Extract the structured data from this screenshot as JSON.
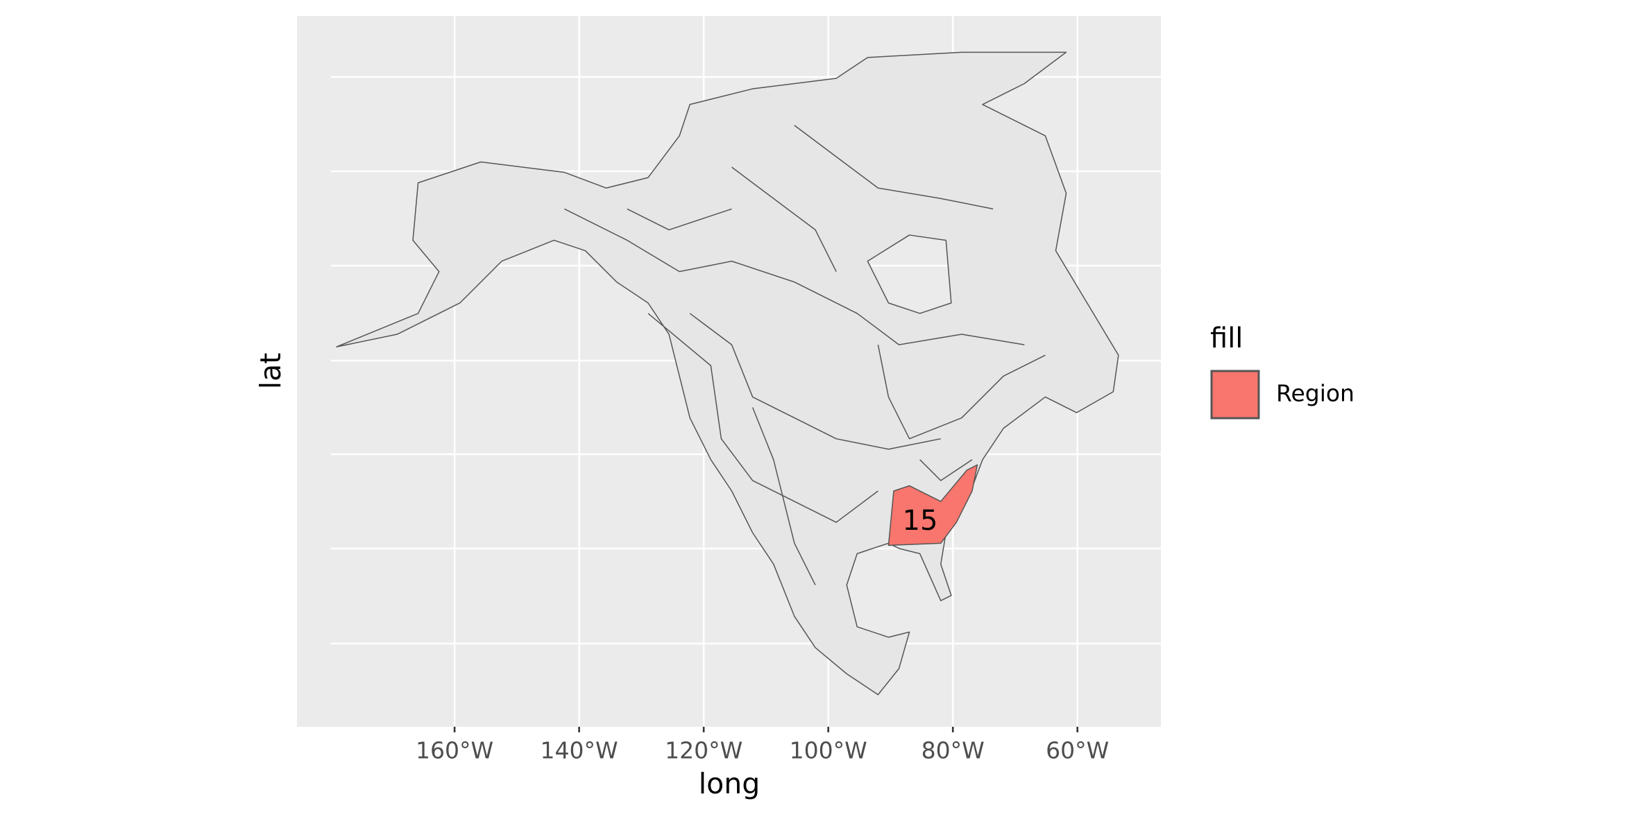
{
  "chart_data": {
    "type": "map",
    "x_label": "long",
    "y_label": "lat",
    "xlim": [
      -185.3,
      -46.6
    ],
    "xticks": [
      {
        "value": -160,
        "label": "160°W"
      },
      {
        "value": -140,
        "label": "140°W"
      },
      {
        "value": -120,
        "label": "120°W"
      },
      {
        "value": -100,
        "label": "100°W"
      },
      {
        "value": -80,
        "label": "80°W"
      },
      {
        "value": -60,
        "label": "60°W"
      }
    ],
    "grid": true,
    "legend": {
      "title": "fill",
      "entries": [
        {
          "name": "Region",
          "color": "#f8766d"
        }
      ]
    },
    "annotations": [
      {
        "text": "15"
      }
    ]
  }
}
